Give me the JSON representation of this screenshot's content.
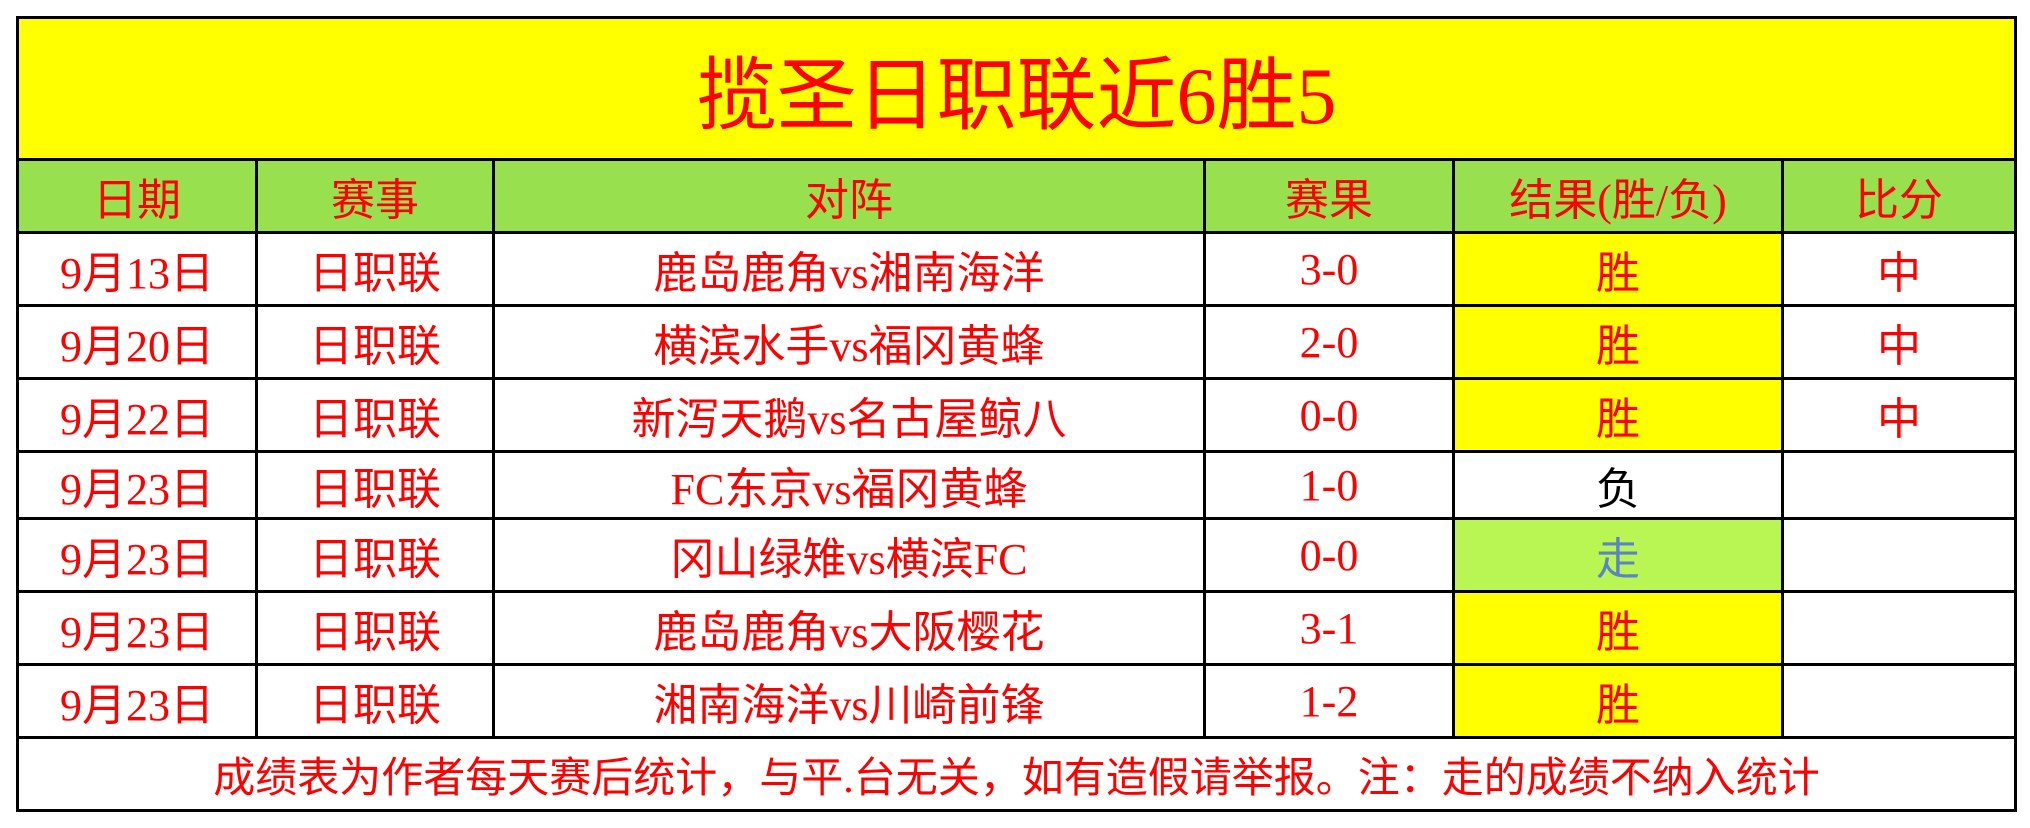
{
  "title": "揽圣日职联近6胜5",
  "headers": [
    "日期",
    "赛事",
    "对阵",
    "赛果",
    "结果(胜/负)",
    "比分"
  ],
  "rows": [
    {
      "date": "9月13日",
      "league": "日职联",
      "match": "鹿岛鹿角vs湘南海洋",
      "score": "3-0",
      "result": "胜",
      "result_type": "win",
      "pick": "中"
    },
    {
      "date": "9月20日",
      "league": "日职联",
      "match": "横滨水手vs福冈黄蜂",
      "score": "2-0",
      "result": "胜",
      "result_type": "win",
      "pick": "中"
    },
    {
      "date": "9月22日",
      "league": "日职联",
      "match": "新泻天鹅vs名古屋鲸八",
      "score": "0-0",
      "result": "胜",
      "result_type": "win",
      "pick": "中"
    },
    {
      "date": "9月23日",
      "league": "日职联",
      "match": "FC东京vs福冈黄蜂",
      "score": "1-0",
      "result": "负",
      "result_type": "lose",
      "pick": ""
    },
    {
      "date": "9月23日",
      "league": "日职联",
      "match": "冈山绿雉vs横滨FC",
      "score": "0-0",
      "result": "走",
      "result_type": "push",
      "pick": ""
    },
    {
      "date": "9月23日",
      "league": "日职联",
      "match": "鹿岛鹿角vs大阪樱花",
      "score": "3-1",
      "result": "胜",
      "result_type": "win",
      "pick": ""
    },
    {
      "date": "9月23日",
      "league": "日职联",
      "match": "湘南海洋vs川崎前锋",
      "score": "1-2",
      "result": "胜",
      "result_type": "win",
      "pick": ""
    }
  ],
  "footer": "成绩表为作者每天赛后统计，与平.台无关，如有造假请举报。注：走的成绩不纳入统计",
  "colors": {
    "title_bg": "#ffff00",
    "header_bg": "#98e04e",
    "win_bg": "#ffff00",
    "push_bg": "#b9f553",
    "text": "#ff0000",
    "push_text": "#5b84c8"
  }
}
